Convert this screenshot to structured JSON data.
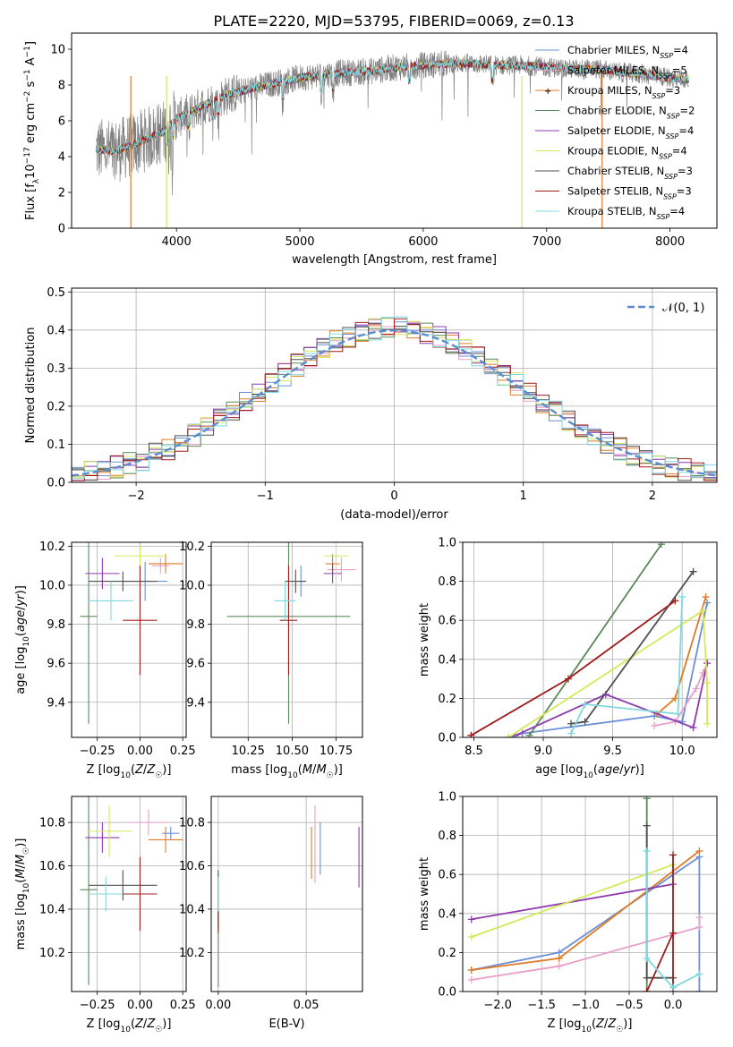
{
  "figure_title": "PLATE=2220, MJD=53795, FIBERID=0069, z=0.13",
  "colors": {
    "Chabrier MILES": "#6b8fd6",
    "Salpeter MILES": "#e8a0c8",
    "Kroupa MILES": "#e07b24",
    "Chabrier ELODIE": "#5a8a5a",
    "Salpeter ELODIE": "#8e3bb0",
    "Kroupa ELODIE": "#d4e85a",
    "Chabrier STELIB": "#505050",
    "Salpeter STELIB": "#a01c1c",
    "Kroupa STELIB": "#7fd8e0"
  },
  "legend_entries": [
    {
      "name": "Chabrier MILES",
      "nssp": "4"
    },
    {
      "name": "Salpeter MILES",
      "nssp": "5"
    },
    {
      "name": "Kroupa MILES",
      "nssp": "3"
    },
    {
      "name": "Chabrier ELODIE",
      "nssp": "2"
    },
    {
      "name": "Salpeter ELODIE",
      "nssp": "4"
    },
    {
      "name": "Kroupa ELODIE",
      "nssp": "4"
    },
    {
      "name": "Chabrier STELIB",
      "nssp": "3"
    },
    {
      "name": "Salpeter STELIB",
      "nssp": "3"
    },
    {
      "name": "Kroupa STELIB",
      "nssp": "4"
    }
  ],
  "chart_data": [
    {
      "id": "spectrum",
      "type": "line",
      "title": "PLATE=2220, MJD=53795, FIBERID=0069, z=0.13",
      "xlabel": "wavelength [Angstrom, rest frame]",
      "ylabel": "Flux [f_λ 10^-17 erg cm^-2 s^-1 A^-1]",
      "xlim": [
        3150,
        8380
      ],
      "ylim": [
        0,
        10.9
      ],
      "xticks": [
        4000,
        5000,
        6000,
        7000,
        8000
      ],
      "yticks": [
        0,
        2,
        4,
        6,
        8,
        10
      ],
      "grid": false,
      "legend_position": "right",
      "continuum": {
        "x": [
          3350,
          3500,
          3700,
          3900,
          4000,
          4200,
          4400,
          4600,
          4800,
          5000,
          5200,
          5400,
          5600,
          5800,
          6000,
          6200,
          6400,
          6600,
          6800,
          7000,
          7200,
          7400,
          7600,
          7800,
          8000,
          8150
        ],
        "y": [
          4.4,
          4.3,
          4.8,
          5.4,
          6.1,
          6.8,
          7.4,
          7.8,
          8.1,
          8.4,
          8.6,
          8.7,
          8.8,
          9.0,
          9.1,
          9.2,
          9.2,
          9.1,
          9.1,
          9.0,
          8.9,
          8.9,
          8.7,
          8.6,
          8.4,
          8.3
        ]
      }
    },
    {
      "id": "residual_hist",
      "type": "histogram",
      "xlabel": "(data-model)/error",
      "ylabel": "Normed distribution",
      "xlim": [
        -2.5,
        2.5
      ],
      "ylim": [
        0,
        0.51
      ],
      "xticks": [
        -2,
        -1,
        0,
        1,
        2
      ],
      "yticks": [
        0.0,
        0.1,
        0.2,
        0.3,
        0.4,
        0.5
      ],
      "grid": true,
      "reference_curve": "N(0,1)",
      "legend_label": "𝒩(0, 1)",
      "legend_position": "top-right",
      "bin_width": 0.1
    },
    {
      "id": "age_vs_Z",
      "type": "errorbar",
      "xlabel": "Z [log10(Z/Z☉)]",
      "ylabel": "age [log10(age/yr)]",
      "xlim": [
        -0.4,
        0.27
      ],
      "ylim": [
        9.22,
        10.22
      ],
      "xticks": [
        -0.25,
        0.0,
        0.25
      ],
      "yticks": [
        9.4,
        9.6,
        9.8,
        10.0,
        10.2
      ],
      "grid": true,
      "points": [
        {
          "series": "Chabrier MILES",
          "x": 0.03,
          "xerr": 0.13,
          "y": 10.02,
          "yerr": 0.1
        },
        {
          "series": "Salpeter MILES",
          "x": 0.12,
          "xerr": 0.05,
          "y": 10.1,
          "yerr": 0.04
        },
        {
          "series": "Kroupa MILES",
          "x": 0.15,
          "xerr": 0.1,
          "y": 10.11,
          "yerr": 0.05
        },
        {
          "series": "Chabrier ELODIE",
          "x": -0.3,
          "xerr": 0.05,
          "y": 9.84,
          "yerr": 0.55
        },
        {
          "series": "Salpeter ELODIE",
          "x": -0.22,
          "xerr": 0.1,
          "y": 10.06,
          "yerr": 0.08
        },
        {
          "series": "Kroupa ELODIE",
          "x": 0.0,
          "xerr": 0.15,
          "y": 10.15,
          "yerr": 0.05
        },
        {
          "series": "Chabrier STELIB",
          "x": -0.1,
          "xerr": 0.2,
          "y": 10.02,
          "yerr": 0.05
        },
        {
          "series": "Salpeter STELIB",
          "x": 0.0,
          "xerr": 0.1,
          "y": 9.82,
          "yerr": 0.28
        },
        {
          "series": "Kroupa STELIB",
          "x": -0.17,
          "xerr": 0.13,
          "y": 9.92,
          "yerr": 0.1
        }
      ]
    },
    {
      "id": "age_vs_mass",
      "type": "errorbar",
      "xlabel": "mass [log10(M/M☉)]",
      "ylabel": "",
      "xlim": [
        10.04,
        10.9
      ],
      "ylim": [
        9.22,
        10.22
      ],
      "xticks": [
        10.25,
        10.5,
        10.75
      ],
      "yticks": [
        9.4,
        9.6,
        9.8,
        10.0,
        10.2
      ],
      "grid": true,
      "points": [
        {
          "series": "Chabrier MILES",
          "x": 10.55,
          "xerr": 0.02,
          "y": 10.02,
          "yerr": 0.08
        },
        {
          "series": "Salpeter MILES",
          "x": 10.78,
          "xerr": 0.08,
          "y": 10.08,
          "yerr": 0.06
        },
        {
          "series": "Kroupa MILES",
          "x": 10.73,
          "xerr": 0.04,
          "y": 10.11,
          "yerr": 0.05
        },
        {
          "series": "Chabrier ELODIE",
          "x": 10.48,
          "xerr": 0.35,
          "y": 9.84,
          "yerr": 0.55
        },
        {
          "series": "Salpeter ELODIE",
          "x": 10.73,
          "xerr": 0.05,
          "y": 10.06,
          "yerr": 0.05
        },
        {
          "series": "Kroupa ELODIE",
          "x": 10.75,
          "xerr": 0.07,
          "y": 10.15,
          "yerr": 0.17
        },
        {
          "series": "Chabrier STELIB",
          "x": 10.52,
          "xerr": 0.06,
          "y": 10.02,
          "yerr": 0.06
        },
        {
          "series": "Salpeter STELIB",
          "x": 10.48,
          "xerr": 0.05,
          "y": 9.82,
          "yerr": 0.28
        },
        {
          "series": "Kroupa STELIB",
          "x": 10.46,
          "xerr": 0.06,
          "y": 9.92,
          "yerr": 0.1
        }
      ]
    },
    {
      "id": "mass_weight_vs_age",
      "type": "line",
      "xlabel": "age [log10(age/yr)]",
      "ylabel": "mass weight",
      "xlim": [
        8.42,
        10.25
      ],
      "ylim": [
        0,
        1
      ],
      "xticks": [
        8.5,
        9.0,
        9.5,
        10.0
      ],
      "yticks": [
        0.0,
        0.2,
        0.4,
        0.6,
        0.8,
        1.0
      ],
      "grid": true,
      "series": [
        {
          "name": "Chabrier MILES",
          "x": [
            8.75,
            8.85,
            9.8,
            10.0,
            10.18
          ],
          "y": [
            0.0,
            0.02,
            0.11,
            0.08,
            0.69
          ]
        },
        {
          "name": "Salpeter MILES",
          "x": [
            9.8,
            9.95,
            10.1,
            10.15,
            10.18
          ],
          "y": [
            0.06,
            0.08,
            0.25,
            0.33,
            0.38
          ]
        },
        {
          "name": "Kroupa MILES",
          "x": [
            9.82,
            9.95,
            10.17
          ],
          "y": [
            0.12,
            0.2,
            0.72
          ]
        },
        {
          "name": "Chabrier ELODIE",
          "x": [
            8.9,
            9.85
          ],
          "y": [
            0.01,
            0.99
          ]
        },
        {
          "name": "Salpeter ELODIE",
          "x": [
            8.8,
            9.45,
            10.08,
            10.18
          ],
          "y": [
            0.01,
            0.22,
            0.05,
            0.38
          ]
        },
        {
          "name": "Kroupa ELODIE",
          "x": [
            8.75,
            10.15,
            10.18,
            10.18
          ],
          "y": [
            0.0,
            0.65,
            0.28,
            0.07
          ]
        },
        {
          "name": "Chabrier STELIB",
          "x": [
            9.2,
            9.3,
            10.08
          ],
          "y": [
            0.07,
            0.08,
            0.85
          ]
        },
        {
          "name": "Salpeter STELIB",
          "x": [
            8.48,
            9.18,
            9.95
          ],
          "y": [
            0.01,
            0.3,
            0.7
          ]
        },
        {
          "name": "Kroupa STELIB",
          "x": [
            9.2,
            9.3,
            9.97,
            10.0
          ],
          "y": [
            0.02,
            0.17,
            0.12,
            0.72
          ]
        }
      ]
    },
    {
      "id": "mass_vs_Z",
      "type": "errorbar",
      "xlabel": "Z [log10(Z/Z☉)]",
      "ylabel": "mass [log10(M/M☉)]",
      "xlim": [
        -0.4,
        0.27
      ],
      "ylim": [
        10.02,
        10.92
      ],
      "xticks": [
        -0.25,
        0.0,
        0.25
      ],
      "yticks": [
        10.2,
        10.4,
        10.6,
        10.8
      ],
      "grid": true,
      "points": [
        {
          "series": "Chabrier MILES",
          "x": 0.18,
          "xerr": 0.05,
          "y": 10.75,
          "yerr": 0.03
        },
        {
          "series": "Salpeter MILES",
          "x": 0.05,
          "xerr": 0.12,
          "y": 10.8,
          "yerr": 0.06
        },
        {
          "series": "Kroupa MILES",
          "x": 0.15,
          "xerr": 0.1,
          "y": 10.72,
          "yerr": 0.06
        },
        {
          "series": "Chabrier ELODIE",
          "x": -0.3,
          "xerr": 0.05,
          "y": 10.49,
          "yerr": 0.44
        },
        {
          "series": "Salpeter ELODIE",
          "x": -0.22,
          "xerr": 0.1,
          "y": 10.73,
          "yerr": 0.07
        },
        {
          "series": "Kroupa ELODIE",
          "x": -0.18,
          "xerr": 0.13,
          "y": 10.76,
          "yerr": 0.12
        },
        {
          "series": "Chabrier STELIB",
          "x": -0.1,
          "xerr": 0.2,
          "y": 10.51,
          "yerr": 0.07
        },
        {
          "series": "Salpeter STELIB",
          "x": 0.0,
          "xerr": 0.1,
          "y": 10.47,
          "yerr": 0.17
        },
        {
          "series": "Kroupa STELIB",
          "x": -0.2,
          "xerr": 0.1,
          "y": 10.47,
          "yerr": 0.08
        }
      ]
    },
    {
      "id": "mass_vs_ebv",
      "type": "errorbar",
      "xlabel": "E(B-V)",
      "ylabel": "",
      "xlim": [
        -0.004,
        0.082
      ],
      "ylim": [
        10.02,
        10.92
      ],
      "xticks": [
        0.0,
        0.05
      ],
      "yticks": [
        10.2,
        10.4,
        10.6,
        10.8
      ],
      "grid": true,
      "points": [
        {
          "series": "Chabrier MILES",
          "x": 0.058,
          "xerr": 0,
          "y": 10.68,
          "yerr": 0.12
        },
        {
          "series": "Salpeter MILES",
          "x": 0.055,
          "xerr": 0,
          "y": 10.7,
          "yerr": 0.18
        },
        {
          "series": "Kroupa MILES",
          "x": 0.053,
          "xerr": 0,
          "y": 10.66,
          "yerr": 0.12
        },
        {
          "series": "Chabrier ELODIE",
          "x": 0.0,
          "xerr": 0,
          "y": 10.3,
          "yerr": 0.26
        },
        {
          "series": "Salpeter ELODIE",
          "x": 0.08,
          "xerr": 0,
          "y": 10.64,
          "yerr": 0.14
        },
        {
          "series": "Kroupa ELODIE",
          "x": 0.0,
          "xerr": 0,
          "y": 10.5,
          "yerr": 0.06
        },
        {
          "series": "Chabrier STELIB",
          "x": 0.0,
          "xerr": 0,
          "y": 10.45,
          "yerr": 0.13
        },
        {
          "series": "Salpeter STELIB",
          "x": 0.0,
          "xerr": 0,
          "y": 10.34,
          "yerr": 0.05
        },
        {
          "series": "Kroupa STELIB",
          "x": 0.0,
          "xerr": 0,
          "y": 10.47,
          "yerr": 0.08
        }
      ]
    },
    {
      "id": "mass_weight_vs_Z",
      "type": "line",
      "xlabel": "Z [log10(Z/Z☉)]",
      "ylabel": "mass weight",
      "xlim": [
        -2.4,
        0.5
      ],
      "ylim": [
        0,
        1
      ],
      "xticks": [
        -2.0,
        -1.5,
        -1.0,
        -0.5,
        0.0
      ],
      "yticks": [
        0.0,
        0.2,
        0.4,
        0.6,
        0.8,
        1.0
      ],
      "grid": true,
      "series": [
        {
          "name": "Chabrier MILES",
          "x": [
            -2.3,
            -1.3,
            0.3,
            0.3
          ],
          "y": [
            0.11,
            0.2,
            0.69,
            0.0
          ]
        },
        {
          "name": "Salpeter MILES",
          "x": [
            -2.3,
            -1.3,
            0.3,
            0.3
          ],
          "y": [
            0.06,
            0.13,
            0.33,
            0.38
          ]
        },
        {
          "name": "Kroupa MILES",
          "x": [
            -2.3,
            -1.3,
            0.3
          ],
          "y": [
            0.11,
            0.17,
            0.72
          ]
        },
        {
          "name": "Chabrier ELODIE",
          "x": [
            -0.3,
            -0.3
          ],
          "y": [
            0.0,
            0.99
          ]
        },
        {
          "name": "Salpeter ELODIE",
          "x": [
            -2.3,
            0.0
          ],
          "y": [
            0.37,
            0.55
          ]
        },
        {
          "name": "Kroupa ELODIE",
          "x": [
            -2.3,
            0.0
          ],
          "y": [
            0.28,
            0.65
          ]
        },
        {
          "name": "Chabrier STELIB",
          "x": [
            -0.3,
            -0.3,
            0.0
          ],
          "y": [
            0.85,
            0.07,
            0.07
          ]
        },
        {
          "name": "Salpeter STELIB",
          "x": [
            -0.3,
            0.0,
            0.0,
            0.0
          ],
          "y": [
            0.0,
            0.3,
            0.7,
            0.0
          ]
        },
        {
          "name": "Kroupa STELIB",
          "x": [
            -0.3,
            -0.3,
            0.0,
            0.3
          ],
          "y": [
            0.72,
            0.17,
            0.02,
            0.09
          ]
        }
      ]
    }
  ]
}
